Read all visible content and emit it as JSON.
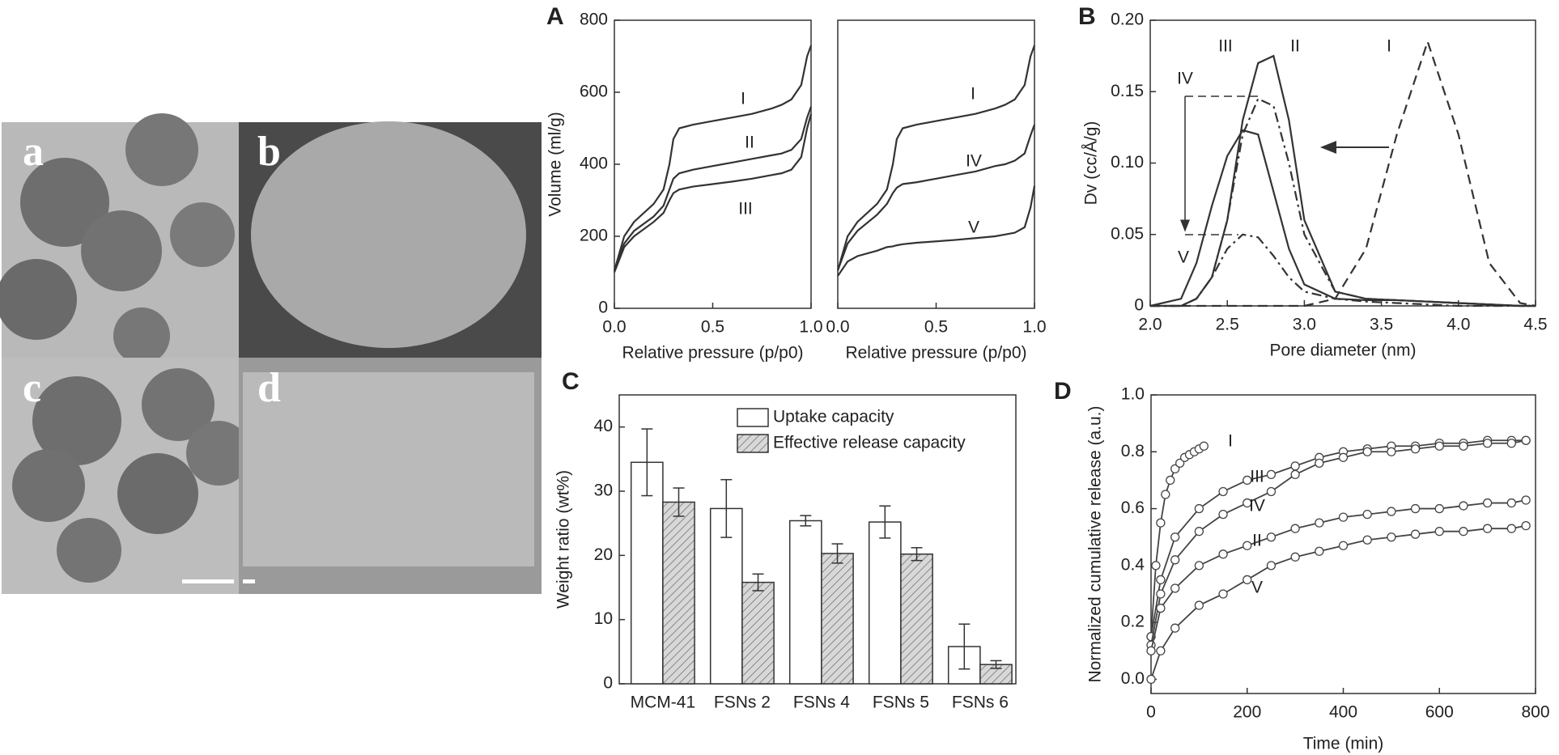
{
  "micrographs": {
    "labels": [
      "a",
      "b",
      "c",
      "d"
    ]
  },
  "chart_data": [
    {
      "type": "line",
      "panel": "A",
      "x_label": "Relative pressure (p/p0)",
      "y_label": "Volume (ml/g)",
      "xlim": [
        0,
        1
      ],
      "ylim": [
        0,
        800
      ],
      "xticks": [
        {
          "value": 0,
          "label": "0.0"
        },
        {
          "value": 0.5,
          "label": "0.5"
        },
        {
          "value": 1,
          "label": "1.0"
        }
      ],
      "yticks": [
        0,
        200,
        400,
        600,
        800
      ],
      "x": [
        0,
        0.05,
        0.1,
        0.2,
        0.25,
        0.28,
        0.3,
        0.33,
        0.4,
        0.5,
        0.6,
        0.7,
        0.8,
        0.85,
        0.9,
        0.95,
        0.98,
        1
      ],
      "series": [
        {
          "name": "I",
          "color": "#333333",
          "style": "solid",
          "values": [
            105,
            200,
            240,
            290,
            330,
            400,
            470,
            500,
            510,
            520,
            530,
            540,
            555,
            565,
            580,
            620,
            700,
            730
          ]
        },
        {
          "name": "II",
          "color": "#333333",
          "style": "solid",
          "values": [
            105,
            180,
            215,
            255,
            285,
            330,
            360,
            375,
            385,
            395,
            405,
            415,
            425,
            430,
            440,
            470,
            530,
            560
          ]
        },
        {
          "name": "III",
          "color": "#333333",
          "style": "solid",
          "values": [
            100,
            170,
            200,
            240,
            265,
            300,
            320,
            330,
            338,
            345,
            352,
            360,
            370,
            375,
            385,
            420,
            500,
            540
          ]
        }
      ]
    },
    {
      "type": "line",
      "x_label": "Relative pressure (p/p0)",
      "xlim": [
        0,
        1
      ],
      "ylim": [
        0,
        800
      ],
      "xticks": [
        {
          "value": 0,
          "label": "0.0"
        },
        {
          "value": 0.5,
          "label": "0.5"
        },
        {
          "value": 1,
          "label": "1.0"
        }
      ],
      "x": [
        0,
        0.05,
        0.1,
        0.2,
        0.25,
        0.28,
        0.3,
        0.33,
        0.4,
        0.5,
        0.6,
        0.7,
        0.8,
        0.85,
        0.9,
        0.95,
        0.98,
        1
      ],
      "series": [
        {
          "name": "I",
          "color": "#333333",
          "style": "solid",
          "values": [
            105,
            200,
            240,
            290,
            330,
            400,
            470,
            500,
            510,
            520,
            530,
            540,
            555,
            565,
            580,
            620,
            700,
            730
          ]
        },
        {
          "name": "IV",
          "color": "#333333",
          "style": "solid",
          "values": [
            105,
            180,
            215,
            260,
            290,
            320,
            335,
            345,
            350,
            360,
            370,
            380,
            395,
            400,
            410,
            430,
            480,
            510
          ]
        },
        {
          "name": "V",
          "color": "#333333",
          "style": "solid",
          "values": [
            90,
            130,
            145,
            160,
            170,
            172,
            175,
            178,
            182,
            186,
            190,
            195,
            200,
            205,
            210,
            225,
            280,
            340
          ]
        }
      ]
    },
    {
      "type": "line",
      "panel": "B",
      "x_label": "Pore diameter (nm)",
      "y_label": "Dv (cc/Å/g)",
      "xlim": [
        2,
        4.5
      ],
      "ylim": [
        0,
        0.2
      ],
      "xticks": [
        {
          "value": 2,
          "label": "2.0"
        },
        2.5,
        {
          "value": 3,
          "label": "3.0"
        },
        3.5,
        {
          "value": 4,
          "label": "4.0"
        },
        4.5
      ],
      "yticks": [
        0,
        0.05,
        {
          "value": 0.1,
          "label": "0.10"
        },
        0.15,
        {
          "value": 0.2,
          "label": "0.20"
        }
      ],
      "x": [
        2,
        2.2,
        2.3,
        2.4,
        2.5,
        2.6,
        2.7,
        2.8,
        2.9,
        3,
        3.2,
        3.4,
        3.6,
        3.8,
        4,
        4.2,
        4.4,
        4.5
      ],
      "series": [
        {
          "name": "I",
          "color": "#333333",
          "style": "dashed",
          "values": [
            0,
            0,
            0,
            0,
            0,
            0,
            0,
            0,
            0,
            0,
            0.005,
            0.04,
            0.12,
            0.185,
            0.12,
            0.03,
            0.002,
            0
          ]
        },
        {
          "name": "II",
          "color": "#333333",
          "style": "solid",
          "values": [
            0,
            0,
            0.005,
            0.02,
            0.06,
            0.13,
            0.17,
            0.175,
            0.13,
            0.06,
            0.01,
            0.005,
            0.004,
            0.003,
            0.002,
            0.001,
            0,
            0
          ]
        },
        {
          "name": "III",
          "color": "#333333",
          "style": "solid",
          "values": [
            0,
            0.005,
            0.03,
            0.07,
            0.105,
            0.123,
            0.12,
            0.08,
            0.04,
            0.015,
            0.005,
            0.004,
            0.004,
            0.003,
            0.002,
            0.001,
            0,
            0
          ]
        },
        {
          "name": "IV",
          "color": "#333333",
          "style": "dashdot",
          "values": [
            0,
            0,
            0.005,
            0.02,
            0.06,
            0.12,
            0.145,
            0.14,
            0.1,
            0.05,
            0.01,
            0.005,
            0.004,
            0.003,
            0.002,
            0.001,
            0,
            0
          ]
        },
        {
          "name": "V",
          "color": "#333333",
          "style": "dashdot",
          "values": [
            0,
            0,
            0.005,
            0.02,
            0.04,
            0.05,
            0.048,
            0.035,
            0.02,
            0.01,
            0.005,
            0.003,
            0.002,
            0.001,
            0,
            0,
            0,
            0
          ]
        }
      ]
    },
    {
      "type": "bar",
      "panel": "C",
      "y_label": "Weight ratio (wt%)",
      "legend": "upper right",
      "ylim": [
        0,
        45
      ],
      "yticks": [
        0,
        10,
        20,
        30,
        40
      ],
      "categories": [
        "MCM-41",
        "FSNs 2",
        "FSNs 4",
        "FSNs 5",
        "FSNs 6"
      ],
      "series": [
        {
          "name": "Uptake capacity",
          "color": "#ffffff",
          "hatch": false,
          "values": [
            34.5,
            27.3,
            25.4,
            25.2,
            5.8
          ],
          "errors": [
            5.2,
            4.5,
            0.8,
            2.5,
            3.5
          ]
        },
        {
          "name": "Effective release capacity",
          "color": "#d0d0d0",
          "hatch": true,
          "values": [
            28.3,
            15.8,
            20.3,
            20.2,
            3.0
          ],
          "errors": [
            2.2,
            1.3,
            1.5,
            1.0,
            0.6
          ]
        }
      ]
    },
    {
      "type": "scatter",
      "panel": "D",
      "x_label": "Time (min)",
      "y_label": "Normalized cumulative release (a.u.)",
      "xlim": [
        0,
        800
      ],
      "ylim": [
        -0.05,
        1.0
      ],
      "xticks": [
        0,
        200,
        400,
        600,
        800
      ],
      "yticks": [
        {
          "value": 0,
          "label": "0.0"
        },
        0.2,
        0.4,
        0.6,
        0.8,
        {
          "value": 1,
          "label": "1.0"
        }
      ],
      "series": [
        {
          "name": "I",
          "color": "#444444",
          "x": [
            0,
            10,
            20,
            30,
            40,
            50,
            60,
            70,
            80,
            90,
            100,
            110
          ],
          "values": [
            0.15,
            0.4,
            0.55,
            0.65,
            0.7,
            0.74,
            0.76,
            0.78,
            0.79,
            0.8,
            0.81,
            0.82
          ]
        },
        {
          "name": "III",
          "color": "#444444",
          "x": [
            0,
            20,
            50,
            100,
            150,
            200,
            250,
            300,
            350,
            400,
            450,
            500,
            550,
            600,
            650,
            700,
            750,
            780
          ],
          "values": [
            0.15,
            0.35,
            0.5,
            0.6,
            0.66,
            0.7,
            0.72,
            0.75,
            0.78,
            0.8,
            0.81,
            0.82,
            0.82,
            0.83,
            0.83,
            0.84,
            0.84,
            0.84
          ]
        },
        {
          "name": "IV",
          "color": "#444444",
          "x": [
            0,
            20,
            50,
            100,
            150,
            200,
            250,
            300,
            350,
            400,
            450,
            500,
            550,
            600,
            650,
            700,
            750,
            780
          ],
          "values": [
            0.12,
            0.3,
            0.42,
            0.52,
            0.58,
            0.62,
            0.66,
            0.72,
            0.76,
            0.78,
            0.8,
            0.8,
            0.81,
            0.82,
            0.82,
            0.83,
            0.83,
            0.84
          ]
        },
        {
          "name": "II",
          "color": "#444444",
          "x": [
            0,
            20,
            50,
            100,
            150,
            200,
            250,
            300,
            350,
            400,
            450,
            500,
            550,
            600,
            650,
            700,
            750,
            780
          ],
          "values": [
            0.1,
            0.25,
            0.32,
            0.4,
            0.44,
            0.47,
            0.5,
            0.53,
            0.55,
            0.57,
            0.58,
            0.59,
            0.6,
            0.6,
            0.61,
            0.62,
            0.62,
            0.63
          ]
        },
        {
          "name": "V",
          "color": "#444444",
          "x": [
            0,
            20,
            50,
            100,
            150,
            200,
            250,
            300,
            350,
            400,
            450,
            500,
            550,
            600,
            650,
            700,
            750,
            780
          ],
          "values": [
            0,
            0.1,
            0.18,
            0.26,
            0.3,
            0.35,
            0.4,
            0.43,
            0.45,
            0.47,
            0.49,
            0.5,
            0.51,
            0.52,
            0.52,
            0.53,
            0.53,
            0.54
          ]
        }
      ]
    }
  ]
}
